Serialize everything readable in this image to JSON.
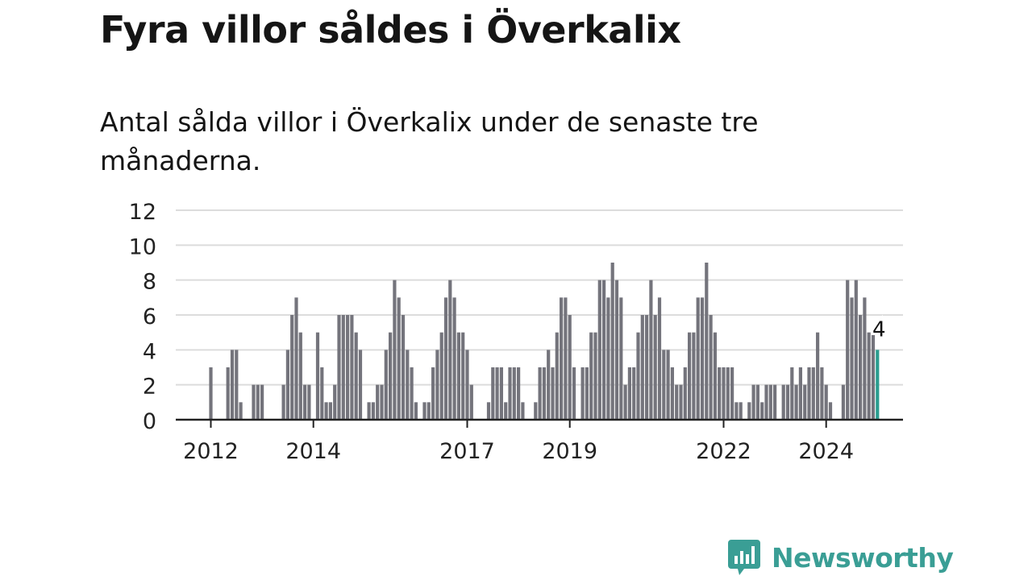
{
  "title": "Fyra villor såldes i Överkalix",
  "subtitle": "Antal sålda villor i Överkalix under de senaste tre månaderna.",
  "brand": {
    "name": "Newsworthy",
    "color": "#3a9e95",
    "logo_icon": "chat-bar-chart-icon"
  },
  "colors": {
    "bar": "#74747c",
    "highlight": "#2a9d8f",
    "grid": "#dcdcdc",
    "axis": "#222222"
  },
  "chart_data": {
    "type": "bar",
    "x_start": "2012-01",
    "x_end": "2025-01",
    "ylim": [
      0,
      12
    ],
    "y_ticks": [
      0,
      2,
      4,
      6,
      8,
      10,
      12
    ],
    "x_tick_labels": [
      "2012",
      "2014",
      "2017",
      "2019",
      "2022",
      "2024"
    ],
    "x_tick_dates": [
      "2012-01",
      "2014-01",
      "2017-01",
      "2019-01",
      "2022-01",
      "2024-01"
    ],
    "highlight_label": "4",
    "values": [
      3,
      0,
      0,
      0,
      3,
      4,
      4,
      1,
      0,
      0,
      2,
      2,
      2,
      0,
      0,
      0,
      0,
      2,
      4,
      6,
      7,
      5,
      2,
      2,
      0,
      5,
      3,
      1,
      1,
      2,
      6,
      6,
      6,
      6,
      5,
      4,
      0,
      1,
      1,
      2,
      2,
      4,
      5,
      8,
      7,
      6,
      4,
      3,
      1,
      0,
      1,
      1,
      3,
      4,
      5,
      7,
      8,
      7,
      5,
      5,
      4,
      2,
      0,
      0,
      0,
      1,
      3,
      3,
      3,
      1,
      3,
      3,
      3,
      1,
      0,
      0,
      1,
      3,
      3,
      4,
      3,
      5,
      7,
      7,
      6,
      3,
      0,
      3,
      3,
      5,
      5,
      8,
      8,
      7,
      9,
      8,
      7,
      2,
      3,
      3,
      5,
      6,
      6,
      8,
      6,
      7,
      4,
      4,
      3,
      2,
      2,
      3,
      5,
      5,
      7,
      7,
      9,
      6,
      5,
      3,
      3,
      3,
      3,
      1,
      1,
      0,
      1,
      2,
      2,
      1,
      2,
      2,
      2,
      0,
      2,
      2,
      3,
      2,
      3,
      2,
      3,
      3,
      5,
      3,
      2,
      1,
      0,
      0,
      2,
      8,
      7,
      8,
      6,
      7,
      5,
      5,
      4
    ]
  }
}
